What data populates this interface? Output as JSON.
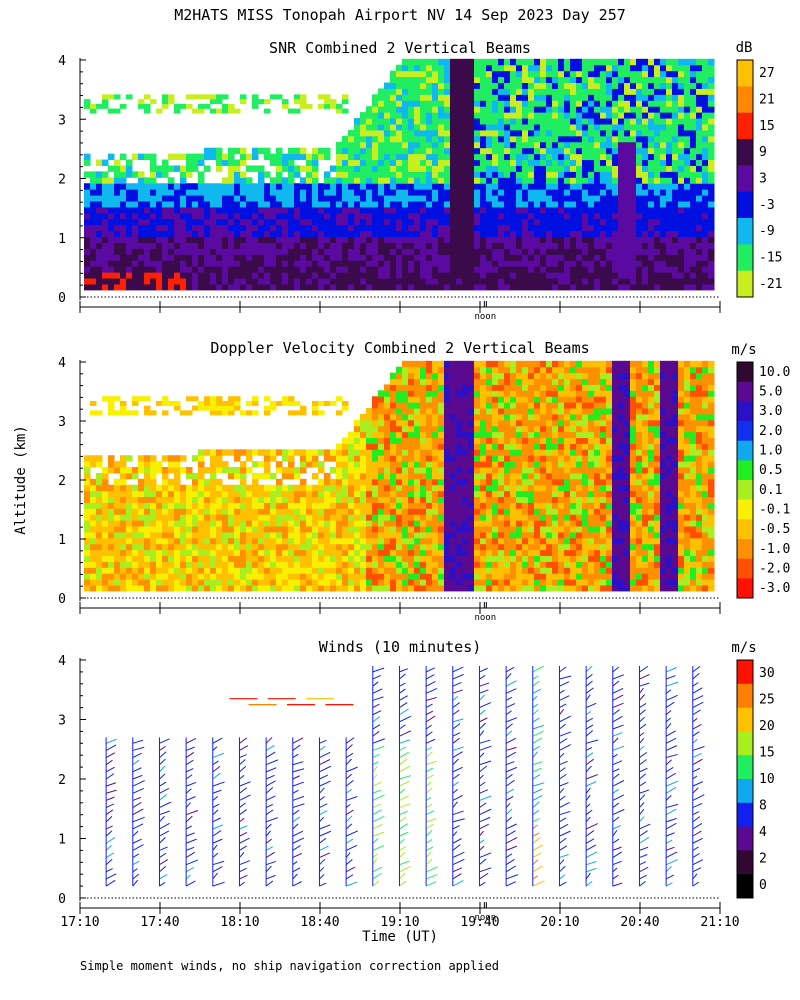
{
  "figure": {
    "title": "M2HATS MISS Tonopah Airport NV  14 Sep 2023 Day 257",
    "ylabel": "Altitude (km)",
    "xlabel": "Time (UT)",
    "footnote": "Simple moment winds, no ship navigation correction applied",
    "noon_label": "noon"
  },
  "chart_data": [
    {
      "type": "heatmap",
      "title": "SNR Combined 2 Vertical Beams",
      "unit": "dB",
      "yticks": [
        "0",
        "1",
        "2",
        "3",
        "4"
      ],
      "ylim": [
        0,
        4
      ],
      "xlim_hours": [
        17.1667,
        21.1667
      ],
      "colorbar_labels": [
        "27",
        "21",
        "15",
        "9",
        "3",
        "-3",
        "-9",
        "-15",
        "-21"
      ],
      "colorbar_colors": [
        "#ffc000",
        "#ff8800",
        "#ff2000",
        "#3a0a4a",
        "#5a0aa0",
        "#0010e0",
        "#10b8f0",
        "#20ee60",
        "#c8ee20"
      ],
      "legend_position": "right",
      "grid": false
    },
    {
      "type": "heatmap",
      "title": "Doppler Velocity Combined 2 Vertical Beams",
      "unit": "m/s",
      "yticks": [
        "0",
        "1",
        "2",
        "3",
        "4"
      ],
      "ylim": [
        0,
        4
      ],
      "xlim_hours": [
        17.1667,
        21.1667
      ],
      "colorbar_labels": [
        "10.0",
        "5.0",
        "3.0",
        "2.0",
        "1.0",
        "0.5",
        "0.1",
        "-0.1",
        "-0.5",
        "-1.0",
        "-2.0",
        "-3.0"
      ],
      "colorbar_colors": [
        "#300830",
        "#5a0a90",
        "#2a10c8",
        "#1030f0",
        "#10a8f0",
        "#20ee20",
        "#a8ee20",
        "#f8f000",
        "#ffc000",
        "#ff9000",
        "#ff5000",
        "#ff1000"
      ],
      "legend_position": "right",
      "grid": false
    },
    {
      "type": "scatter",
      "title": "Winds (10 minutes)",
      "unit": "m/s",
      "yticks": [
        "0",
        "1",
        "2",
        "3",
        "4"
      ],
      "ylim": [
        0,
        4
      ],
      "xticks": [
        "17:10",
        "17:40",
        "18:10",
        "18:40",
        "19:10",
        "19:40",
        "20:10",
        "20:40",
        "21:10"
      ],
      "xlim_hours": [
        17.1667,
        21.1667
      ],
      "colorbar_labels": [
        "30",
        "25",
        "20",
        "15",
        "10",
        "8",
        "4",
        "2",
        "0"
      ],
      "colorbar_colors": [
        "#ff1000",
        "#ff8000",
        "#ffc000",
        "#a8ee20",
        "#20ee60",
        "#10a8f0",
        "#1020f0",
        "#5a0a90",
        "#300830",
        "#000000"
      ],
      "legend_position": "right",
      "grid": false
    }
  ]
}
